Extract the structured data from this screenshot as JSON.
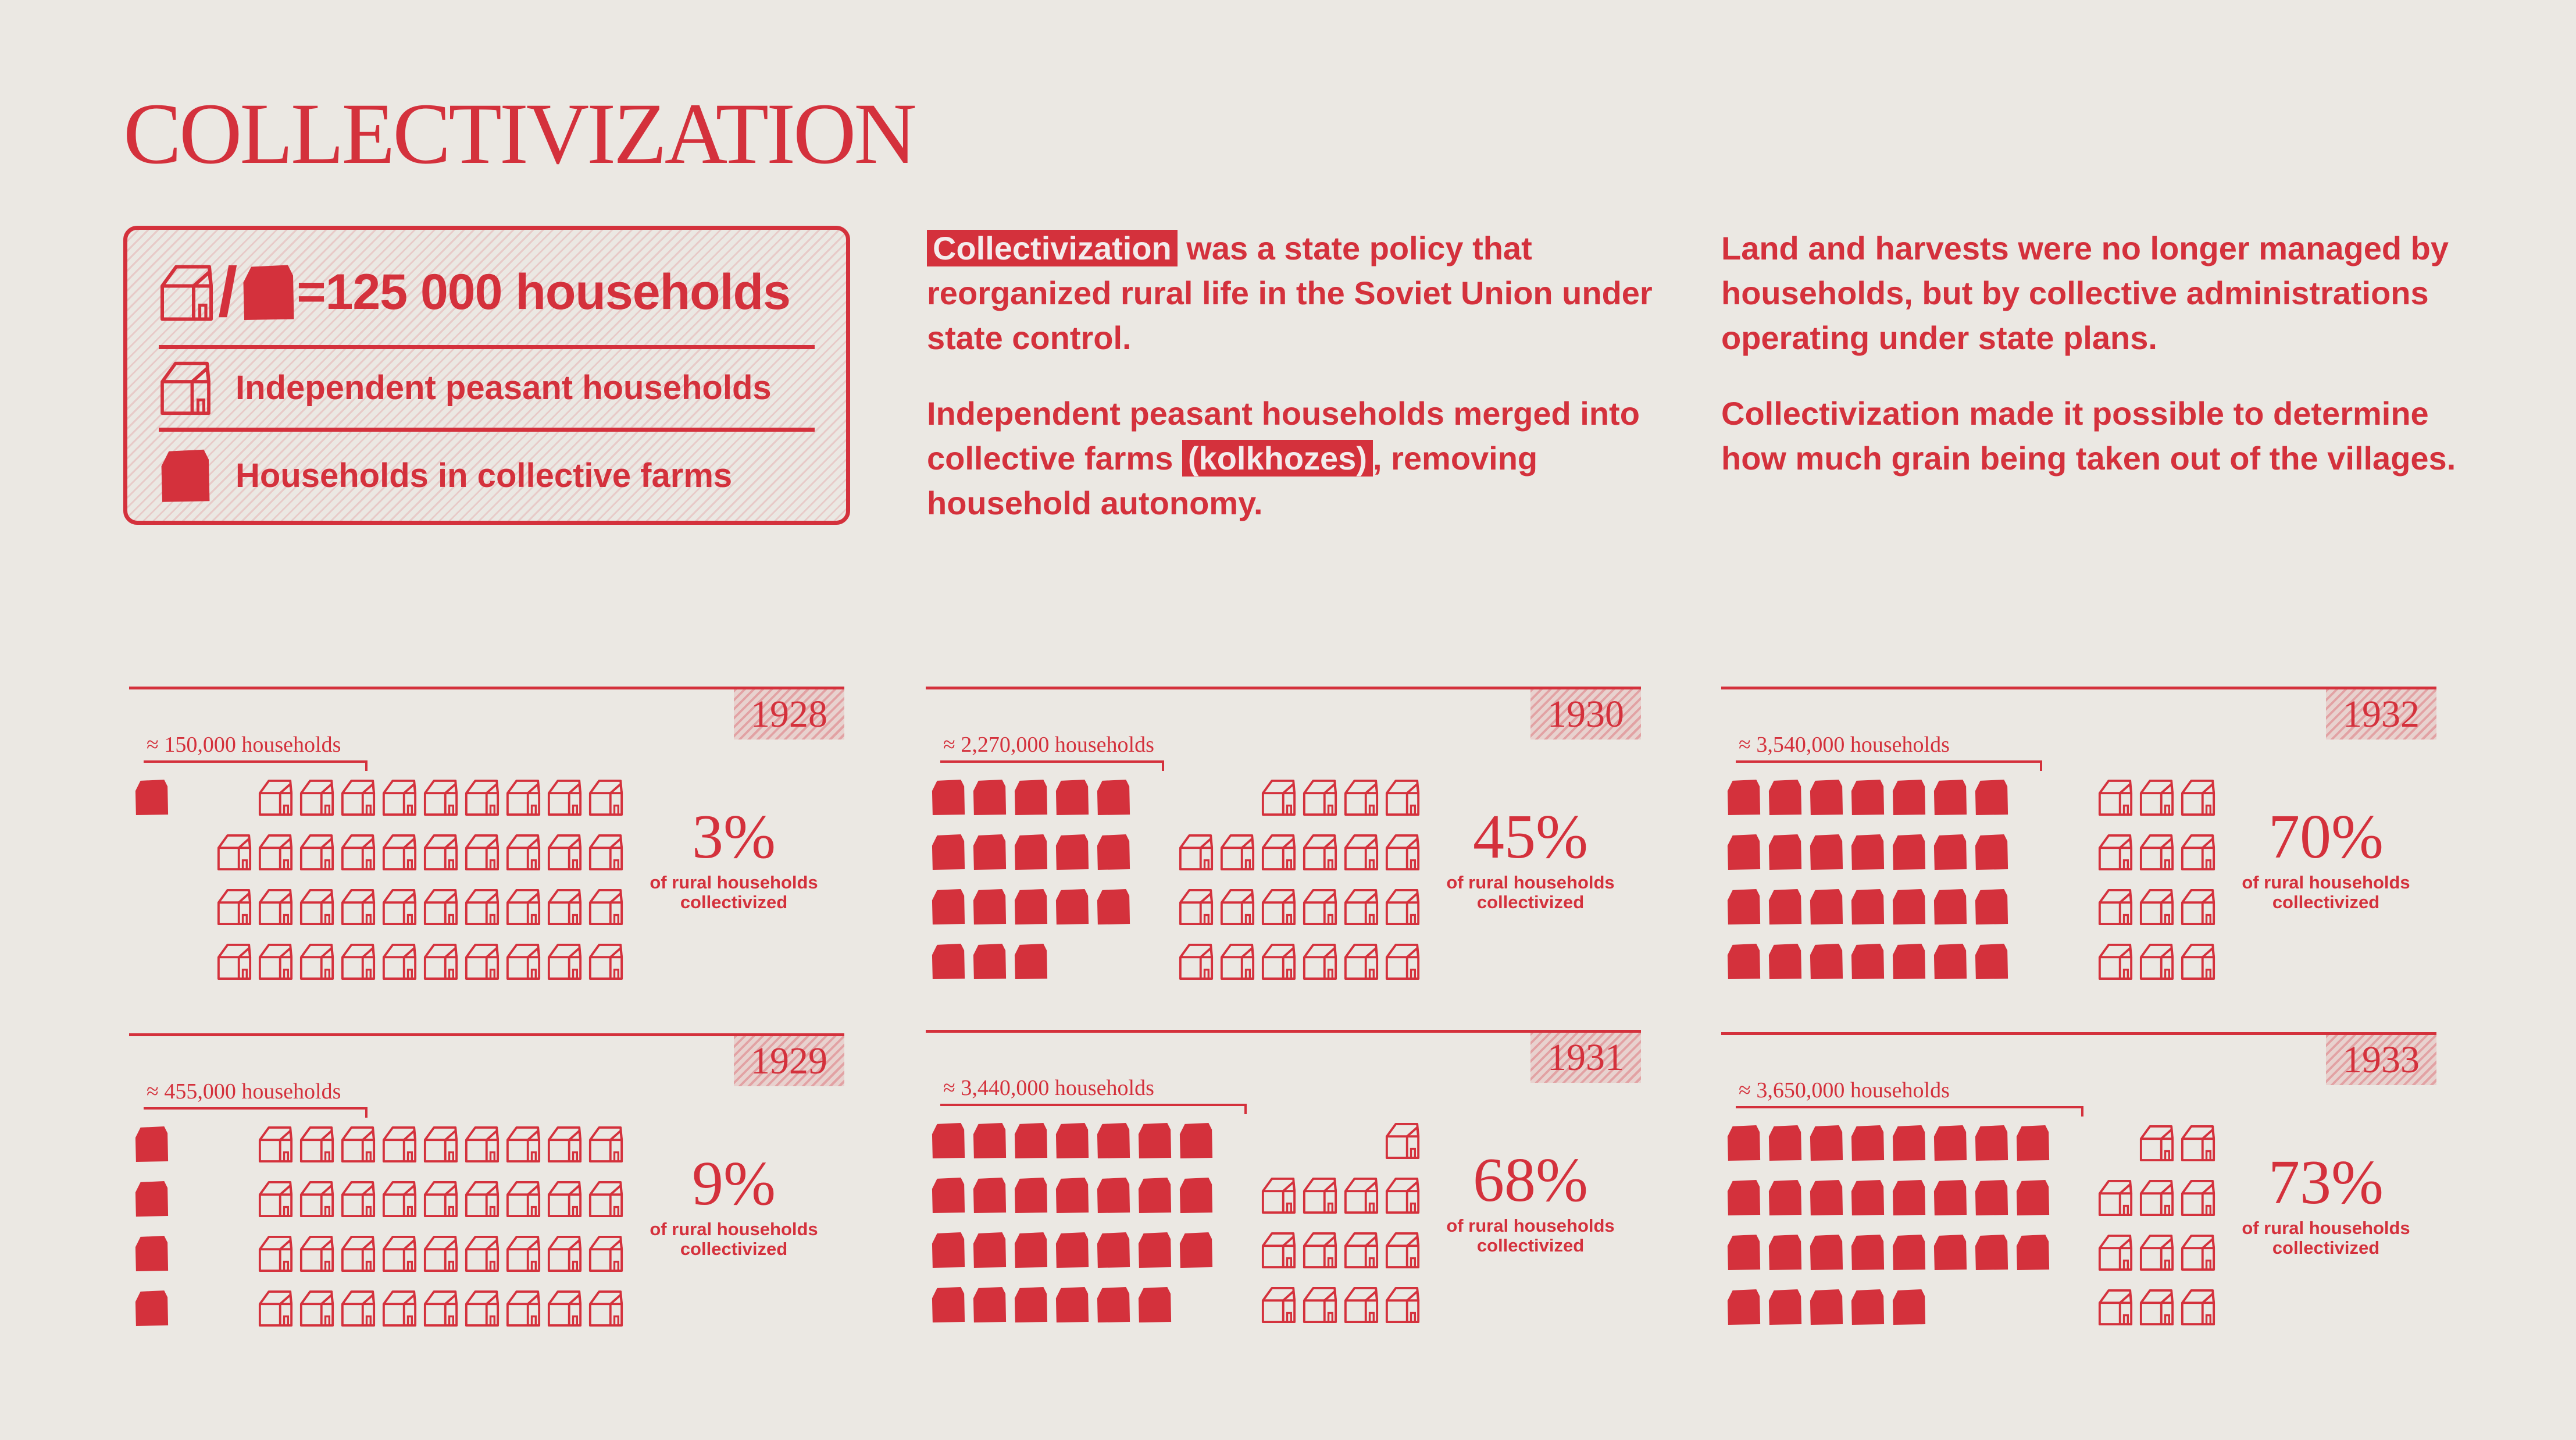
{
  "title": "COLLECTIVIZATION",
  "legend": {
    "unit_label": "=125 000 households",
    "slash": "/",
    "independent_label": "Independent peasant households",
    "collective_label": "Households in collective farms"
  },
  "intro": {
    "p1_highlight": "Collectivization",
    "p1_rest": " was a state policy that reorganized rural life in the Soviet Union under state control.",
    "p2_before": "Independent peasant households merged into collective farms ",
    "p2_highlight": "(kolkhozes)",
    "p2_after": ", removing household autonomy.",
    "p3": "Land and harvests were no longer managed by households, but by collective administrations operating under state plans.",
    "p4": "Collectivization made it possible to determine how much grain being taken out of the villages."
  },
  "colors": {
    "accent": "#d4313c",
    "background": "#ebe8e3"
  },
  "icons": {
    "independent": "house-outline-icon",
    "collective": "house-filled-icon"
  },
  "chart_data": [
    {
      "type": "pictogram",
      "year": "1928",
      "households_label": "≈ 150,000 households",
      "collective_icons": 1,
      "independent_icons": 39,
      "percent_label": "3%",
      "percent_value": 3,
      "subtitle": "of rural households collectivized"
    },
    {
      "type": "pictogram",
      "year": "1929",
      "households_label": "≈ 455,000 households",
      "collective_icons": 4,
      "independent_icons": 36,
      "percent_label": "9%",
      "percent_value": 9,
      "subtitle": "of rural households collectivized"
    },
    {
      "type": "pictogram",
      "year": "1930",
      "households_label": "≈ 2,270,000 households",
      "collective_icons": 18,
      "independent_icons": 22,
      "percent_label": "45%",
      "percent_value": 45,
      "subtitle": "of rural households collectivized"
    },
    {
      "type": "pictogram",
      "year": "1931",
      "households_label": "≈ 3,440,000 households",
      "collective_icons": 27,
      "independent_icons": 13,
      "percent_label": "68%",
      "percent_value": 68,
      "subtitle": "of rural households collectivized"
    },
    {
      "type": "pictogram",
      "year": "1932",
      "households_label": "≈ 3,540,000 households",
      "collective_icons": 28,
      "independent_icons": 12,
      "percent_label": "70%",
      "percent_value": 70,
      "subtitle": "of rural households collectivized"
    },
    {
      "type": "pictogram",
      "year": "1933",
      "households_label": "≈ 3,650,000 households",
      "collective_icons": 29,
      "independent_icons": 11,
      "percent_label": "73%",
      "percent_value": 73,
      "subtitle": "of rural households collectivized"
    }
  ]
}
